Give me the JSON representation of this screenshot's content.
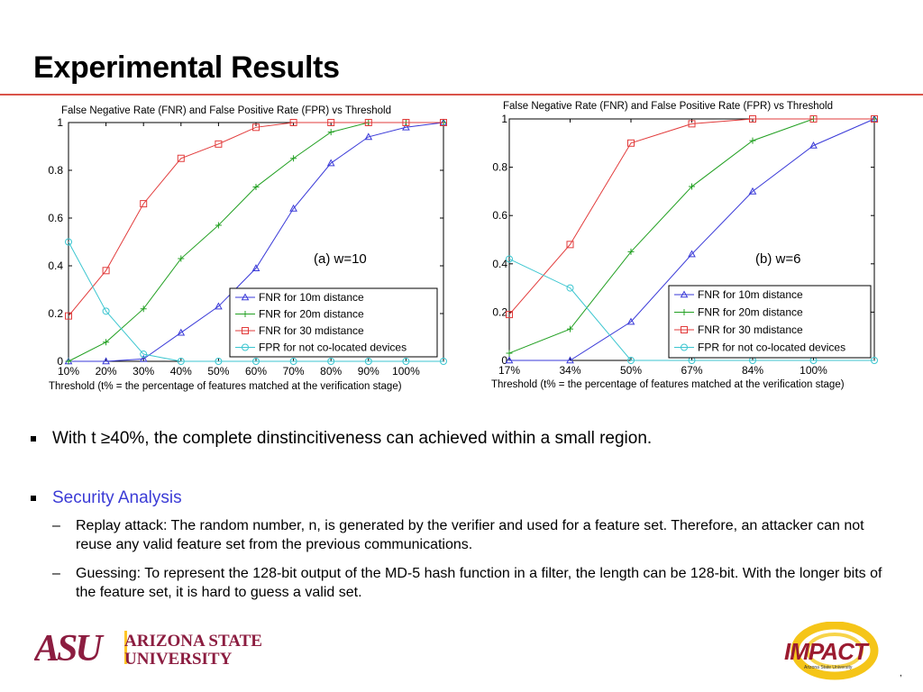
{
  "slide": {
    "title": "Experimental Results",
    "page_mark": ","
  },
  "bullets": {
    "b1": "With t ≥40%, the complete dinstincitiveness can achieved within a small region.",
    "b2": "Security Analysis",
    "sub1": "Replay attack: The random number, n, is generated by the verifier and used for a feature set. Therefore, an attacker can not reuse any valid feature set from the previous communications.",
    "sub2": "Guessing: To represent the 128-bit output of the MD-5 hash function in a filter, the length can be 128-bit. With the longer bits of the feature set, it is hard to guess a valid set.",
    "dash": "–"
  },
  "logos": {
    "asu_mark": "ASU",
    "asu_line1": "ARIZONA STATE",
    "asu_line2": "UNIVERSITY",
    "impact": "IMPACT",
    "impact_sub": "Arizona State University"
  },
  "colors": {
    "fnr10": "#3a3ad8",
    "fnr20": "#22a022",
    "fnr30": "#e23b3b",
    "fpr": "#3cc6d0",
    "asu_maroon": "#8c1d40",
    "asu_gold": "#ffc627",
    "rule": "#d9534a"
  },
  "chart_data": [
    {
      "type": "line",
      "title": "False Negative Rate (FNR) and False Positive Rate (FPR) vs Threshold",
      "annotation": "(a) w=10",
      "xlabel": "Threshold (t% = the percentage of features matched at the verification stage)",
      "ylabel": "",
      "x": [
        "10%",
        "20%",
        "30%",
        "40%",
        "50%",
        "60%",
        "70%",
        "80%",
        "90%",
        "100%",
        ""
      ],
      "ylim": [
        0,
        1
      ],
      "yticks": [
        "0",
        "0.2",
        "0.4",
        "0.6",
        "0.8",
        "1"
      ],
      "legend_position": "bottom-right",
      "grid": false,
      "series": [
        {
          "name": "FNR for 10m distance",
          "marker": "triangle",
          "values": [
            0,
            0,
            0.01,
            0.12,
            0.23,
            0.39,
            0.64,
            0.83,
            0.94,
            0.98,
            1.0
          ]
        },
        {
          "name": "FNR for 20m distance",
          "marker": "plus",
          "values": [
            0,
            0.08,
            0.22,
            0.43,
            0.57,
            0.73,
            0.85,
            0.96,
            1.0,
            1.0,
            1.0
          ]
        },
        {
          "name": "FNR for 30 mdistance",
          "marker": "square",
          "values": [
            0.19,
            0.38,
            0.66,
            0.85,
            0.91,
            0.98,
            1.0,
            1.0,
            1.0,
            1.0,
            1.0
          ]
        },
        {
          "name": "FPR for not co-located devices",
          "marker": "circle",
          "values": [
            0.5,
            0.21,
            0.03,
            0,
            0,
            0,
            0,
            0,
            0,
            0,
            0
          ]
        }
      ]
    },
    {
      "type": "line",
      "title": "False Negative Rate (FNR) and False Positive Rate (FPR) vs Threshold",
      "annotation": "(b) w=6",
      "xlabel": "Threshold (t% = the percentage of features matched at the verification stage)",
      "ylabel": "",
      "x": [
        "17%",
        "34%",
        "50%",
        "67%",
        "84%",
        "100%",
        ""
      ],
      "ylim": [
        0,
        1
      ],
      "yticks": [
        "0",
        "0.2",
        "0.4",
        "0.6",
        "0.8",
        "1"
      ],
      "legend_position": "bottom-right",
      "grid": false,
      "series": [
        {
          "name": "FNR for 10m distance",
          "marker": "triangle",
          "values": [
            0,
            0,
            0.16,
            0.44,
            0.7,
            0.89,
            1.0
          ]
        },
        {
          "name": "FNR for 20m distance",
          "marker": "plus",
          "values": [
            0.03,
            0.13,
            0.45,
            0.72,
            0.91,
            1.0,
            1.0
          ]
        },
        {
          "name": "FNR for 30 mdistance",
          "marker": "square",
          "values": [
            0.19,
            0.48,
            0.9,
            0.98,
            1.0,
            1.0,
            1.0
          ]
        },
        {
          "name": "FPR for not co-located devices",
          "marker": "circle",
          "values": [
            0.42,
            0.3,
            0,
            0,
            0,
            0,
            0
          ]
        }
      ]
    }
  ]
}
